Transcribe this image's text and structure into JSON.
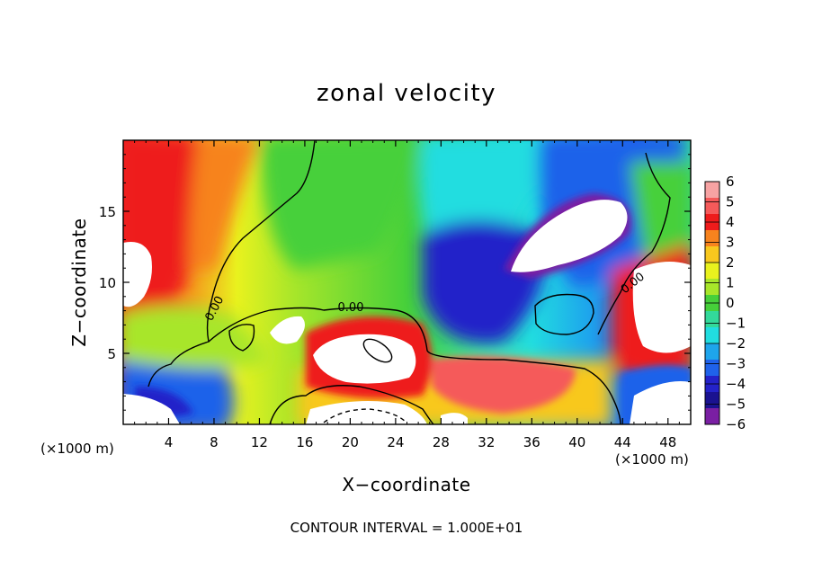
{
  "chart_data": {
    "type": "heatmap",
    "title": "zonal velocity",
    "xlabel": "X−coordinate",
    "ylabel": "Z−coordinate",
    "x_scale_left": "(×1000 m)",
    "x_scale_right": "(×1000 m)",
    "xlim": [
      0,
      50
    ],
    "ylim": [
      0,
      20
    ],
    "xticks": [
      4,
      8,
      12,
      16,
      20,
      24,
      28,
      32,
      36,
      40,
      44,
      48
    ],
    "yticks": [
      5,
      10,
      15
    ],
    "colorbar": {
      "levels": [
        6,
        5,
        4,
        3,
        2,
        1,
        0,
        -1,
        -2,
        -3,
        -4,
        -5,
        -6
      ],
      "labels": [
        "6",
        "5",
        "4",
        "3",
        "2",
        "1",
        "0",
        "−1",
        "−2",
        "−3",
        "−4",
        "−5",
        "−6"
      ],
      "colors": [
        "#f7a3a3",
        "#f55a5a",
        "#ee1b1b",
        "#f7831e",
        "#f8c81e",
        "#e9f21e",
        "#a8e62a",
        "#46d03a",
        "#33d99a",
        "#21dde0",
        "#1ea5ec",
        "#1f62ea",
        "#2422c9",
        "#1a1290",
        "#7a1fa3"
      ]
    },
    "contour_labels": [
      "0.00",
      "0.00",
      "0.00"
    ],
    "footer": "CONTOUR INTERVAL = 1.000E+01"
  }
}
